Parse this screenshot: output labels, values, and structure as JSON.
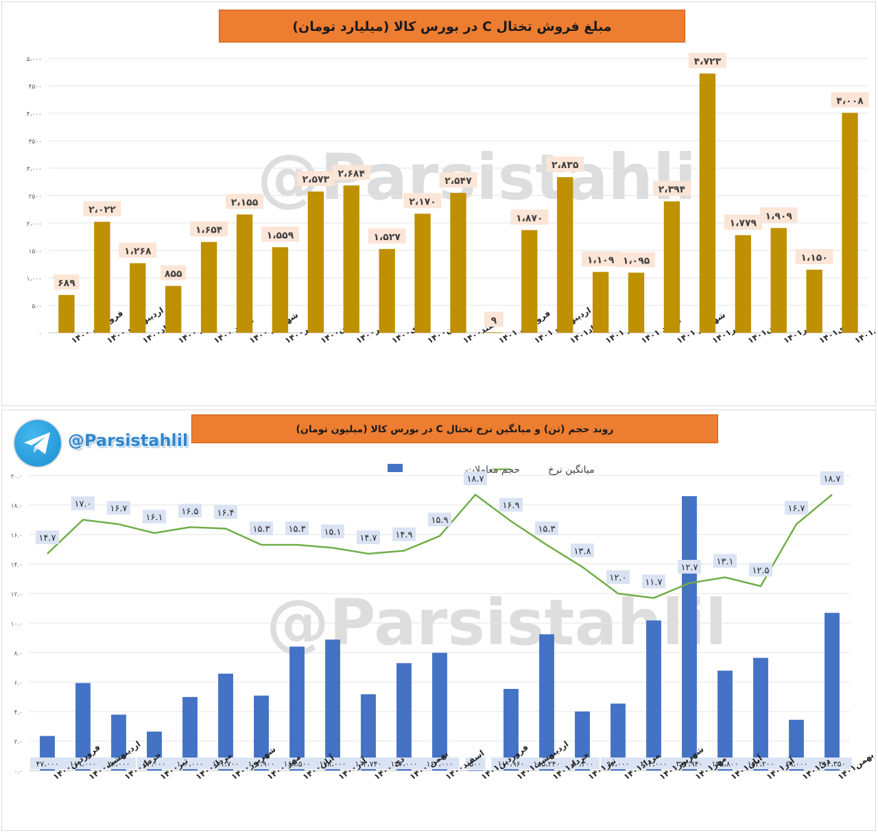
{
  "watermark": "@Parsistahlil",
  "chart_data": [
    {
      "type": "bar",
      "title": "مبلغ فروش  تختال C در بورس کالا (میلیارد تومان)",
      "categories": [
        "فروردین ۱۴۰۰",
        "اردیبهشت ۱۴۰۰",
        "خرداد۱۴۰۰",
        "تیر ۱۴۰۰",
        "مرداد ۱۴۰۰",
        "شهریور ۱۴۰۰",
        "مهر۱۴۰۰",
        "آبان۱۴۰۰",
        "آذر۱۴۰۰",
        "دی۱۴۰۰",
        "بهمن۱۴۰۰",
        "اسفند۱۴۰۰",
        "فروردین ۱۴۰۱",
        "اردیبهشت ۱۴۰۱",
        "خرداد۱۴۰۱",
        "تیر ۱۴۰۱",
        "مرداد ۱۴۰۱",
        "شهریور ۱۴۰۱",
        "مهر۱۴۰۱",
        "آبان۱۴۰۱",
        "آذر۱۴۰۱",
        "دی۱۴۰۱",
        "بهمن۱۴۰۱"
      ],
      "values": [
        689,
        2022,
        1268,
        855,
        1654,
        2155,
        1559,
        2573,
        2684,
        1527,
        2170,
        2547,
        9,
        1870,
        2835,
        1109,
        1095,
        2394,
        4723,
        1779,
        1909,
        1150,
        4008
      ],
      "data_labels": [
        "۶۸۹",
        "۲،۰۲۲",
        "۱،۲۶۸",
        "۸۵۵",
        "۱،۶۵۴",
        "۲،۱۵۵",
        "۱،۵۵۹",
        "۲،۵۷۳",
        "۲،۶۸۴",
        "۱،۵۲۷",
        "۲،۱۷۰",
        "۲،۵۴۷",
        "۹",
        "۱،۸۷۰",
        "۲،۸۳۵",
        "۱،۱۰۹",
        "۱،۰۹۵",
        "۲،۳۹۴",
        "۴،۷۲۳",
        "۱،۷۷۹",
        "۱،۹۰۹",
        "۱،۱۵۰",
        "۴،۰۰۸"
      ],
      "ylim": [
        0,
        5000
      ],
      "ytick_labels": [
        "۰",
        "۵۰۰",
        "۱،۰۰۰",
        "۱۵۰۰",
        "۲،۰۰۰",
        "۲۵۰۰",
        "۳،۰۰۰",
        "۳۵۰۰",
        "۴،۰۰۰",
        "۴۵۰۰",
        "۵،۰۰۰"
      ],
      "grid": true,
      "bar_color": "#bf9000",
      "label_bg": "#fbe5d6"
    },
    {
      "type": "bar+line",
      "title": "روند حجم (تن) و میانگین نرخ  تختال C در بورس کالا (میلیون تومان)",
      "categories": [
        "فروردین۱۴۰۰",
        "اردیبهشت۱۴۰۰",
        "خرداد۱۴۰۰",
        "تیر۱۴۰۰",
        "مرداد۱۴۰۰",
        "شهریور۱۴۰۰",
        "مهر ۱۴۰۰",
        "آبان۱۴۰۰",
        "آذر۱۴۰۰",
        "دی ۱۴۰۰",
        "بهمن ۱۴۰۰",
        "اسفند۱۴۰۰",
        "فروردین۱۴۰۱",
        "اردیبهشت۱۴۰۱",
        "خرداد۱۴۰۱",
        "تیر۱۴۰۱",
        "مرداد۱۴۰۱",
        "شهریور۱۴۰۱",
        "مهر۱۴۰۱",
        "آبان۱۴۰۱",
        "آذر۱۴۰۱",
        "دی۱۴۰۱",
        "بهمن۱۴۰۱"
      ],
      "ylim": [
        0,
        20
      ],
      "ytick_labels": [
        "۰.۰",
        "۲.۰",
        "۴.۰",
        "۶.۰",
        "۸.۰",
        "۱۰.۰",
        "۱۲.۰",
        "۱۴.۰",
        "۱۶.۰",
        "۱۸.۰",
        "۲۰.۰"
      ],
      "grid": true,
      "legend_position": "top-center",
      "series": [
        {
          "name": "حجم معاملات",
          "kind": "bar",
          "color": "#4472c4",
          "values": [
            47000,
            119000,
            76000,
            53000,
            100000,
            131700,
            101900,
            168500,
            178000,
            103740,
            146000,
            160000,
            500,
            110960,
            185240,
            80300,
            91000,
            204000,
            372940,
            135800,
            153200,
            69000,
            214350
          ],
          "data_labels": [
            "۴۷،۰۰۰",
            "۱۱۹،۰۰۰",
            "۷۶،۰۰۰",
            "۵۳،۰۰۰",
            "۱۰۰،۰۰۰",
            "۱۳۱،۷۰۰",
            "۱۰۱،۹۰۰",
            "۱۶۸،۵۰۰",
            "۱۷۸،۰۰۰",
            "۱۰۳،۷۴۰",
            "۱۴۶،۰۰۰",
            "۱۶۰،۰۰۰",
            "۵۰۰",
            "۱۱۰،۹۶۰",
            "۱۸۵،۲۴۰",
            "۸۰،۳۰۰",
            "۹۱،۰۰۰",
            "۲۰۴،۰۰۰",
            "۳۷۲،۹۴۰",
            "۱۳۵،۸۰۰",
            "۱۵۳،۲۰۰",
            "۶۹،۰۰۰",
            "۲۱۴،۳۵۰"
          ]
        },
        {
          "name": "میانگین نرخ",
          "kind": "line",
          "color": "#70ad47",
          "values": [
            14.7,
            17.0,
            16.7,
            16.1,
            16.5,
            16.4,
            15.3,
            15.3,
            15.1,
            14.7,
            14.9,
            15.9,
            18.7,
            16.9,
            15.3,
            13.8,
            12.0,
            11.7,
            12.7,
            13.1,
            12.5,
            16.7,
            18.7
          ],
          "data_labels": [
            "۱۴.۷",
            "۱۷.۰",
            "۱۶.۷",
            "۱۶.۱",
            "۱۶.۵",
            "۱۶.۴",
            "۱۵.۳",
            "۱۵.۳",
            "۱۵.۱",
            "۱۴.۷",
            "۱۴.۹",
            "۱۵.۹",
            "۱۸.۷",
            "۱۶.۹",
            "۱۵.۳",
            "۱۳.۸",
            "۱۲.۰",
            "۱۱.۷",
            "۱۲.۷",
            "۱۳.۱",
            "۱۲.۵",
            "۱۶.۷",
            "۱۸.۷"
          ]
        }
      ],
      "label_bg": "#dae3f3"
    }
  ],
  "channel": {
    "handle": "@Parsistahlil",
    "logo_icon": "telegram-icon",
    "logo_color": "#2aa3e6"
  }
}
